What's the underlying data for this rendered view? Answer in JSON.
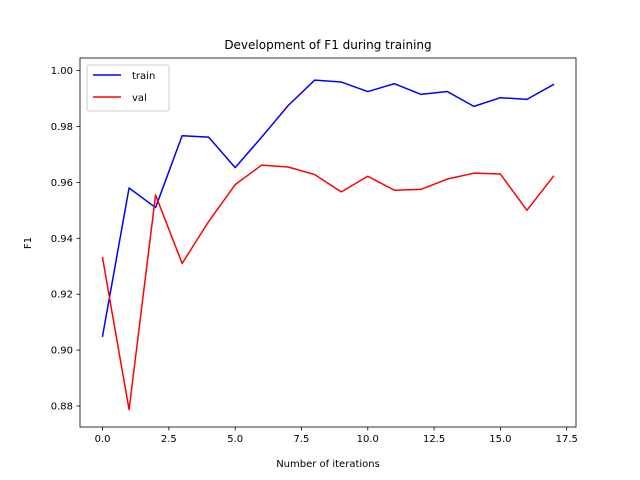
{
  "chart_data": {
    "type": "line",
    "title": "Development of F1 during training",
    "xlabel": "Number of iterations",
    "ylabel": "F1",
    "xlim": [
      -0.85,
      17.85
    ],
    "ylim": [
      0.8725,
      1.0045
    ],
    "xticks": [
      0.0,
      2.5,
      5.0,
      7.5,
      10.0,
      12.5,
      15.0,
      17.5
    ],
    "xtick_labels": [
      "0.0",
      "2.5",
      "5.0",
      "7.5",
      "10.0",
      "12.5",
      "15.0",
      "17.5"
    ],
    "yticks": [
      0.88,
      0.9,
      0.92,
      0.94,
      0.96,
      0.98,
      1.0
    ],
    "ytick_labels": [
      "0.88",
      "0.90",
      "0.92",
      "0.94",
      "0.96",
      "0.98",
      "1.00"
    ],
    "grid": false,
    "legend_position": "top-left",
    "x": [
      0,
      1,
      2,
      3,
      4,
      5,
      6,
      7,
      8,
      9,
      10,
      11,
      12,
      13,
      14,
      15,
      16,
      17
    ],
    "series": [
      {
        "name": "train",
        "color": "#0000ff",
        "values": [
          0.905,
          0.958,
          0.951,
          0.9767,
          0.9762,
          0.9653,
          0.9762,
          0.9875,
          0.9966,
          0.9959,
          0.9925,
          0.9953,
          0.9915,
          0.9925,
          0.9872,
          0.9903,
          0.9897,
          0.995
        ]
      },
      {
        "name": "val",
        "color": "#ff0000",
        "values": [
          0.933,
          0.8787,
          0.9555,
          0.931,
          0.946,
          0.9592,
          0.9662,
          0.9655,
          0.9628,
          0.9566,
          0.9622,
          0.9572,
          0.9575,
          0.9612,
          0.9633,
          0.963,
          0.95,
          0.9622
        ]
      }
    ]
  }
}
